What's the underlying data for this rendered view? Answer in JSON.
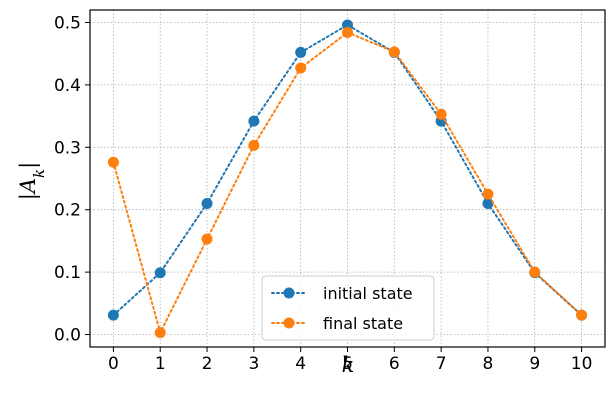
{
  "chart_data": {
    "type": "line",
    "xlabel": "k",
    "ylabel": "|A_k|",
    "x": [
      0,
      1,
      2,
      3,
      4,
      5,
      6,
      7,
      8,
      9,
      10
    ],
    "xticks": [
      "0",
      "1",
      "2",
      "3",
      "4",
      "5",
      "6",
      "7",
      "8",
      "9",
      "10"
    ],
    "yticks": [
      "0.0",
      "0.1",
      "0.2",
      "0.3",
      "0.4",
      "0.5"
    ],
    "xlim": [
      -0.5,
      10.5
    ],
    "ylim": [
      -0.02,
      0.52
    ],
    "grid": true,
    "legend_position": "bottom-center",
    "series": [
      {
        "name": "initial state",
        "color": "#1f77b4",
        "linestyle": "dotted",
        "marker": "circle",
        "values": [
          0.031,
          0.099,
          0.21,
          0.342,
          0.452,
          0.496,
          0.452,
          0.342,
          0.21,
          0.099,
          0.031
        ]
      },
      {
        "name": "final state",
        "color": "#ff7f0e",
        "linestyle": "dotted",
        "marker": "circle",
        "values": [
          0.276,
          0.003,
          0.153,
          0.303,
          0.427,
          0.484,
          0.453,
          0.353,
          0.225,
          0.1,
          0.031
        ]
      }
    ]
  }
}
